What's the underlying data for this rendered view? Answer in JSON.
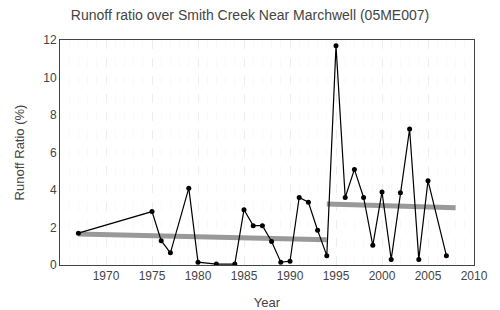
{
  "chart_data": {
    "type": "line",
    "title": "Runoff ratio over Smith Creek Near Marchwell (05ME007)",
    "xlabel": "Year",
    "ylabel": "Runoff Ratio (%)",
    "xlim": [
      1965,
      2010
    ],
    "ylim": [
      0,
      12
    ],
    "xticks": [
      1970,
      1975,
      1980,
      1985,
      1990,
      1995,
      2000,
      2005,
      2010
    ],
    "yticks": [
      0,
      2,
      4,
      6,
      8,
      10,
      12
    ],
    "grid": "x",
    "series": [
      {
        "x": [
          1967,
          1994
        ],
        "values": [
          1.65,
          1.35
        ],
        "color": "#999999",
        "line_style": "solid"
      },
      {
        "x": [
          1994,
          2008
        ],
        "values": [
          3.25,
          3.05
        ],
        "color": "#999999",
        "line_style": "solid"
      },
      {
        "x": [
          1967,
          1975,
          1976,
          1977,
          1979,
          1980,
          1982,
          1984,
          1985,
          1986,
          1987,
          1988,
          1989,
          1990,
          1991,
          1992,
          1993,
          1994,
          1995,
          1996,
          1997,
          1998,
          1999,
          2000,
          2001,
          2002,
          2003,
          2004,
          2005,
          2007
        ],
        "values": [
          1.7,
          2.85,
          1.3,
          0.65,
          4.1,
          0.15,
          0.05,
          0.05,
          2.95,
          2.1,
          2.1,
          1.25,
          0.15,
          0.2,
          3.6,
          3.35,
          1.85,
          0.5,
          11.7,
          3.6,
          5.1,
          3.6,
          1.05,
          3.9,
          0.3,
          3.85,
          7.25,
          0.3,
          4.5,
          0.5
        ],
        "color": "#000000",
        "marker": "circle",
        "line_style": "solid"
      }
    ]
  }
}
